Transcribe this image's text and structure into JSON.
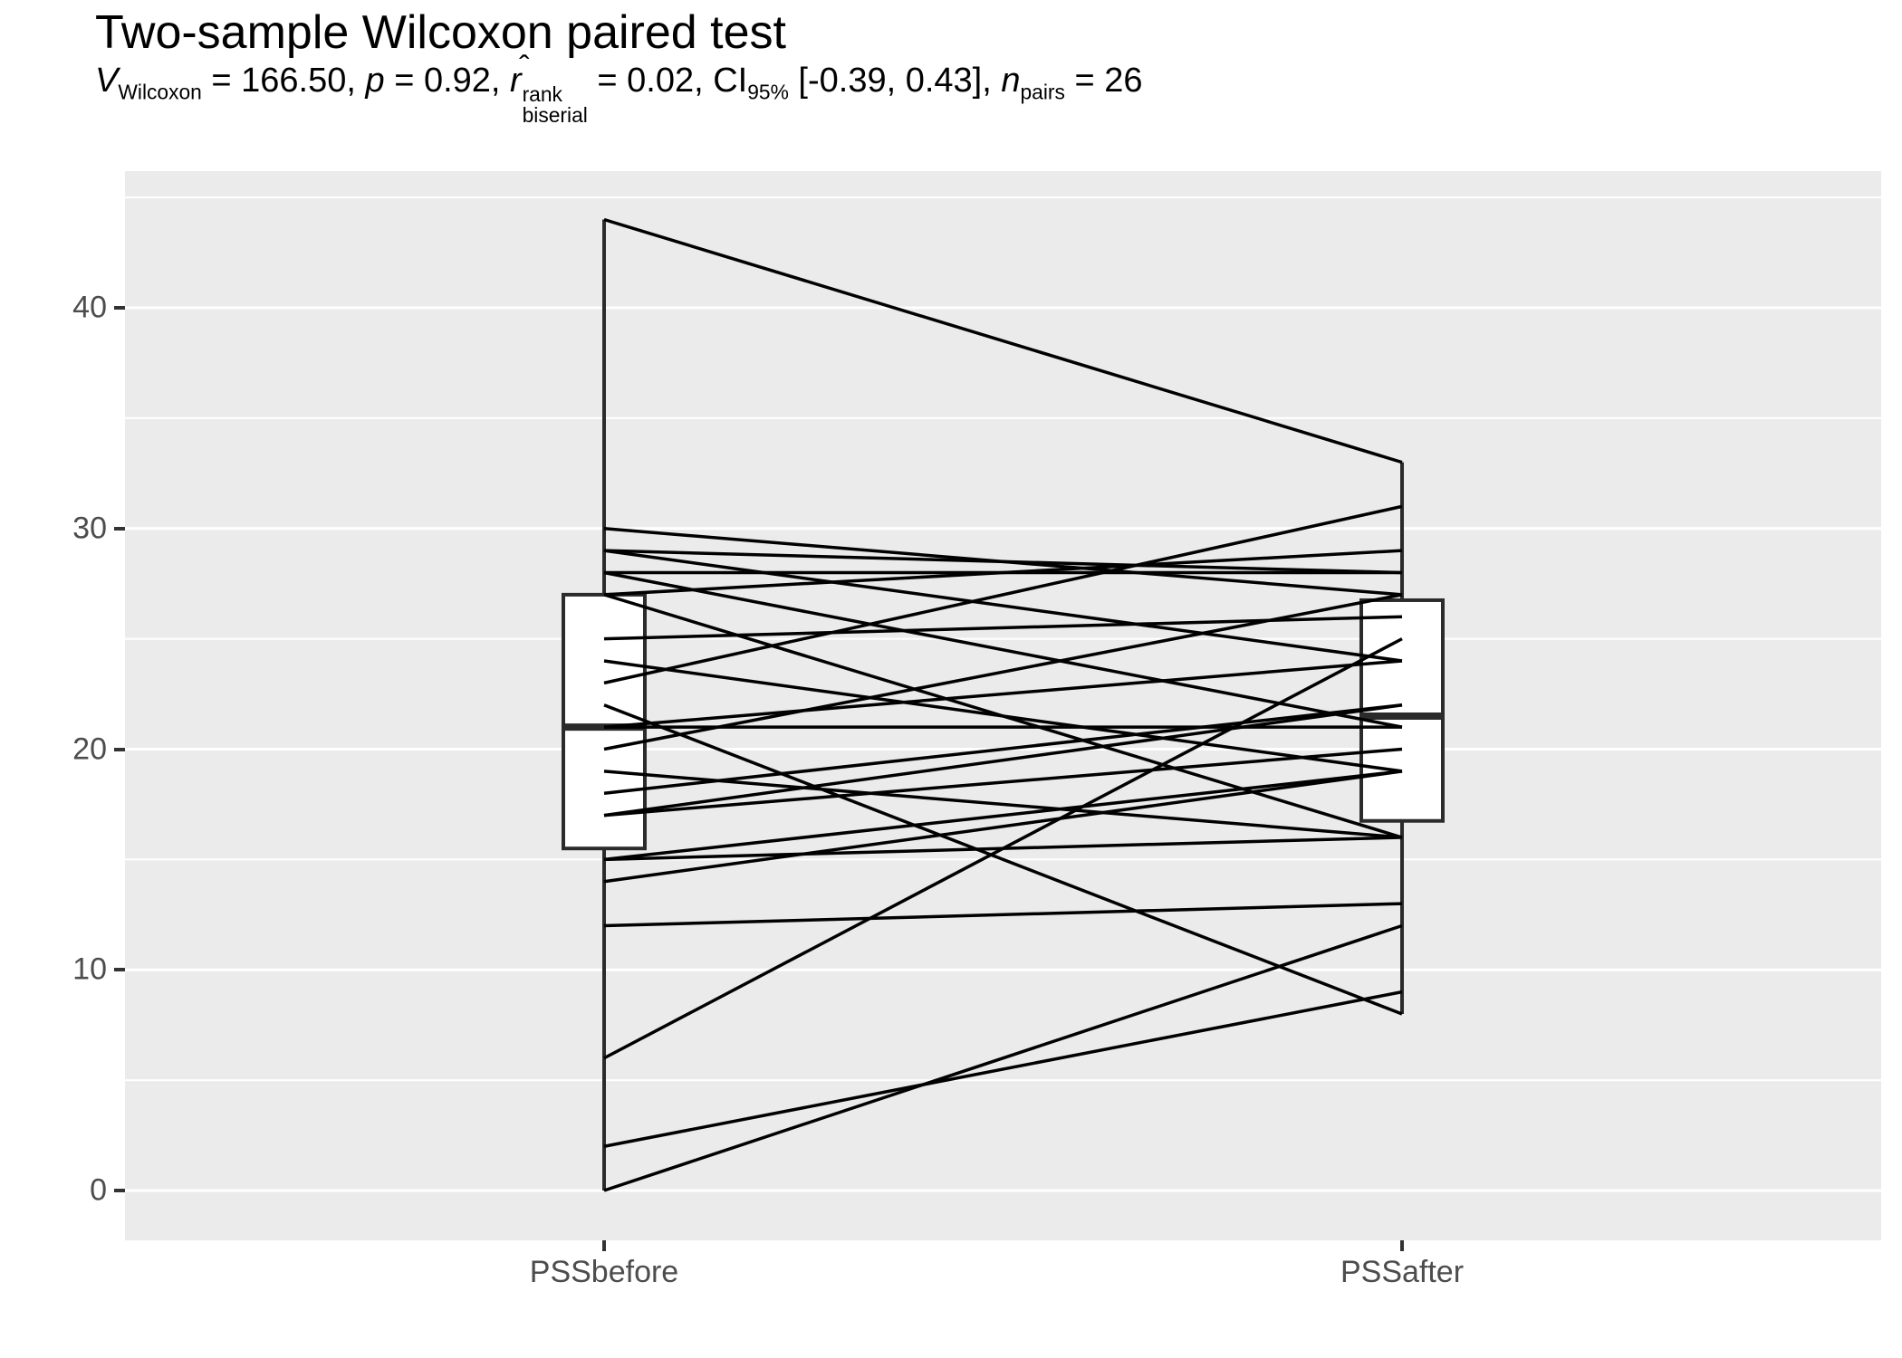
{
  "title": "Two-sample Wilcoxon paired test",
  "subtitle": {
    "v": "V",
    "v_sub": "Wilcoxon",
    "seg1": " = 166.50, ",
    "p": "p",
    "seg2": " = 0.92, ",
    "r": "r",
    "hat": "ˆ",
    "r_sup": "rank",
    "r_sub": "biserial",
    "seg3": " = 0.02, ",
    "ci": "CI",
    "ci_sub": "95%",
    "seg4": " [-0.39, 0.43], ",
    "n": "n",
    "n_sub": "pairs",
    "seg5": " = 26"
  },
  "chart_data": {
    "type": "paired-boxplot-with-lines",
    "title": "Two-sample Wilcoxon paired test",
    "subtitle_plain": "V Wilcoxon = 166.50, p = 0.92, r-hat rank biserial = 0.02, CI 95% [-0.39, 0.43], n pairs = 26",
    "stats": {
      "V": 166.5,
      "p": 0.92,
      "r_rank_biserial": 0.02,
      "ci95": [
        -0.39,
        0.43
      ],
      "n_pairs": 26
    },
    "categories": [
      "PSSbefore",
      "PSSafter"
    ],
    "y_ticks": [
      0,
      10,
      20,
      30,
      40
    ],
    "y_minor_gridlines": [
      5,
      15,
      25,
      35,
      45
    ],
    "ylim_panel": [
      -2.3,
      46.2
    ],
    "grid": "on",
    "legend": "none",
    "xlabel": "",
    "ylabel": "",
    "boxplots": {
      "PSSbefore": {
        "whisker_low": 0,
        "q1": 15.5,
        "median": 21,
        "q3": 27,
        "whisker_high": 44
      },
      "PSSafter": {
        "whisker_low": 8,
        "q1": 16.75,
        "median": 21.5,
        "q3": 26.75,
        "whisker_high": 33
      }
    },
    "pairs": [
      [
        44,
        33
      ],
      [
        30,
        27
      ],
      [
        29,
        28
      ],
      [
        29,
        24
      ],
      [
        28,
        28
      ],
      [
        28,
        21
      ],
      [
        27,
        29
      ],
      [
        27,
        16
      ],
      [
        25,
        26
      ],
      [
        24,
        19
      ],
      [
        23,
        31
      ],
      [
        22,
        8
      ],
      [
        21,
        24
      ],
      [
        21,
        21
      ],
      [
        20,
        27
      ],
      [
        19,
        16
      ],
      [
        18,
        22
      ],
      [
        17,
        20
      ],
      [
        17,
        22
      ],
      [
        15,
        19
      ],
      [
        15,
        16
      ],
      [
        14,
        19
      ],
      [
        12,
        13
      ],
      [
        6,
        25
      ],
      [
        2,
        9
      ],
      [
        0,
        12
      ]
    ],
    "colors": {
      "panel_bg": "#EBEBEB",
      "gridline": "#FFFFFF",
      "box_stroke": "#2B2B2B",
      "box_fill": "#FFFFFF",
      "pair_line": "#000000",
      "axis_text": "#4D4D4D",
      "tick_mark": "#333333"
    }
  }
}
